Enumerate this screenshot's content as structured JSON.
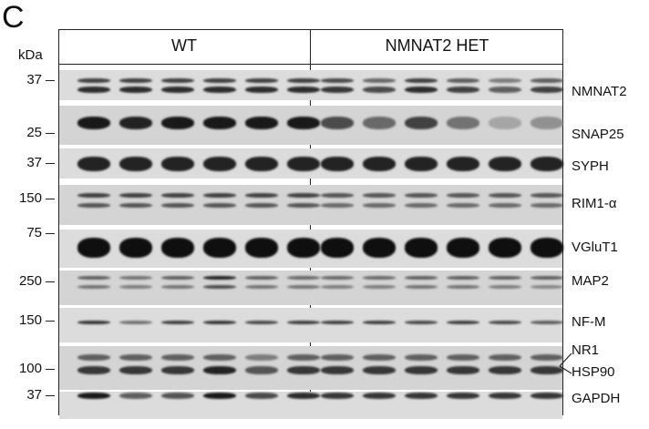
{
  "panel_letter": "C",
  "unit_label": "kDa",
  "groups": {
    "wt": "WT",
    "het": "NMNAT2 HET"
  },
  "markers": {
    "m37a": "37",
    "m25": "25",
    "m37b": "37",
    "m150a": "150",
    "m75": "75",
    "m250": "250",
    "m150b": "150",
    "m100": "100",
    "m37c": "37"
  },
  "proteins": {
    "nmnat2": "NMNAT2",
    "snap25": "SNAP25",
    "syph": "SYPH",
    "rim1": "RIM1-α",
    "vglut1": "VGluT1",
    "map2": "MAP2",
    "nfm": "NF-M",
    "nr1": "NR1",
    "hsp90": "HSP90",
    "gapdh": "GAPDH"
  }
}
